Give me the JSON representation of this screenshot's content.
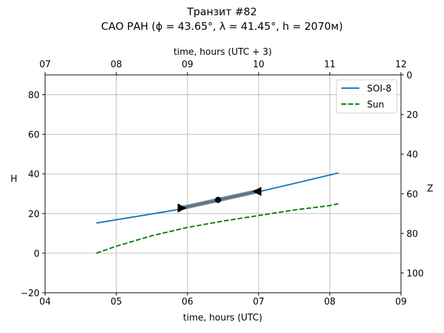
{
  "chart_data": {
    "type": "line",
    "title_line1": "Транзит #82",
    "title_line2": "САО РАН (ϕ = 43.65°, λ = 41.45°, h = 2070м)",
    "xlabel": "time, hours (UTC)",
    "xlabel_top": "time, hours (UTC + 3)",
    "ylabel": "H",
    "ylabel_right": "Z",
    "xlim": [
      4,
      9
    ],
    "ylim": [
      -20,
      90
    ],
    "ylim_right": [
      110,
      0
    ],
    "x_ticks": [
      4,
      5,
      6,
      7,
      8,
      9
    ],
    "x_tick_labels": [
      "04",
      "05",
      "06",
      "07",
      "08",
      "09"
    ],
    "x_top_ticks": [
      4,
      5,
      6,
      7,
      8,
      9
    ],
    "x_top_tick_labels": [
      "07",
      "08",
      "09",
      "10",
      "11",
      "12"
    ],
    "y_ticks": [
      -20,
      0,
      20,
      40,
      60,
      80
    ],
    "y_tick_labels": [
      "−20",
      "0",
      "20",
      "40",
      "60",
      "80"
    ],
    "y_right_ticks": [
      0,
      20,
      40,
      60,
      80,
      100
    ],
    "y_right_tick_labels": [
      "0",
      "20",
      "40",
      "60",
      "80",
      "100"
    ],
    "grid": true,
    "legend_position": "top-right",
    "series": [
      {
        "name": "SOI-8",
        "color": "#1f77b4",
        "style": "solid",
        "x": [
          4.72,
          5.5,
          6.0,
          6.5,
          7.0,
          7.5,
          8.12
        ],
        "y": [
          15.2,
          19.8,
          22.8,
          26.9,
          31.0,
          35.2,
          40.5
        ]
      },
      {
        "name": "Sun",
        "color": "#008000",
        "style": "dashed",
        "x": [
          4.72,
          5.0,
          5.5,
          6.0,
          6.5,
          7.0,
          7.5,
          8.0,
          8.12
        ],
        "y": [
          0.0,
          3.5,
          8.8,
          13.0,
          16.2,
          19.0,
          21.8,
          24.0,
          25.0
        ]
      }
    ],
    "transit": {
      "color": "#808080",
      "start": {
        "x": 5.92,
        "y": 22.8
      },
      "mid": {
        "x": 6.43,
        "y": 26.9
      },
      "end": {
        "x": 6.98,
        "y": 31.2
      }
    }
  }
}
